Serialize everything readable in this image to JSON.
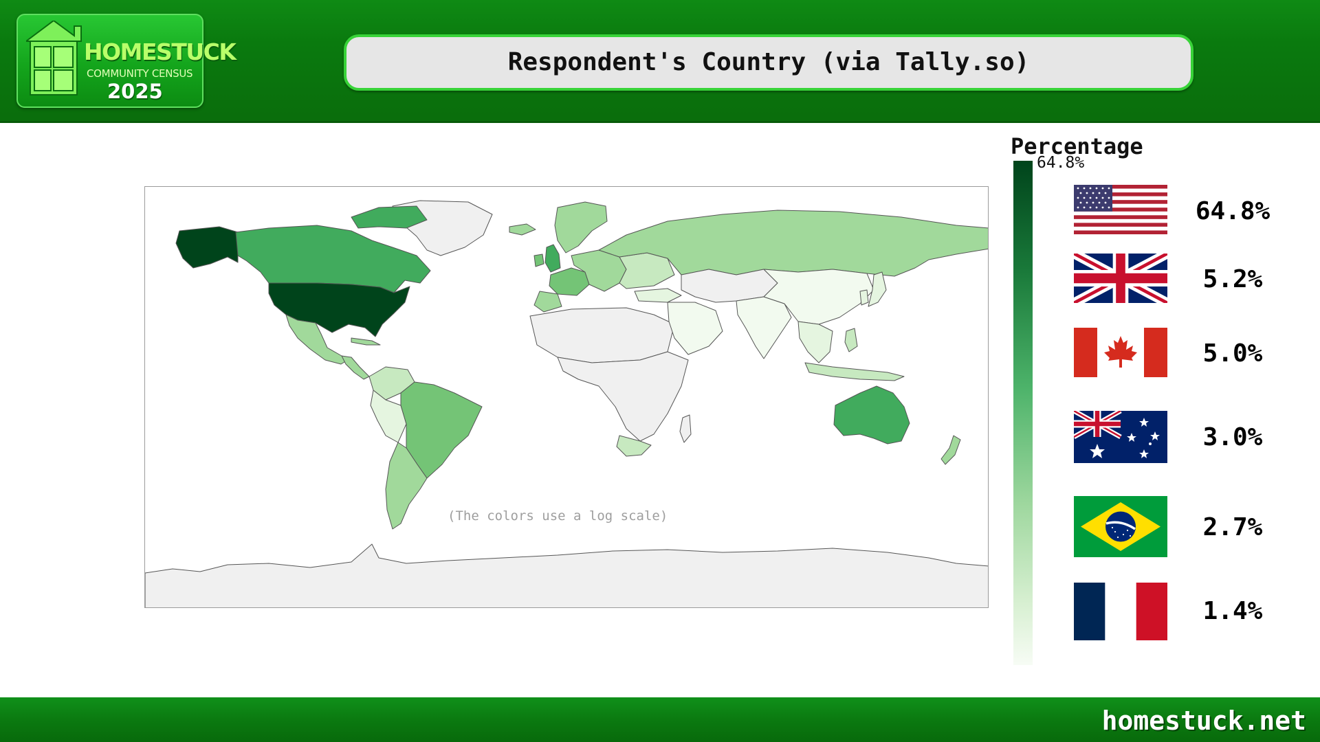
{
  "logo": {
    "title": "HOMESTUCK",
    "subtitle": "COMMUNITY CENSUS",
    "year": "2025"
  },
  "page_title": "Respondent's Country (via Tally.so)",
  "map": {
    "note": "(The colors use a log scale)",
    "scale": "log",
    "colors": {
      "highest": "#00441b",
      "high": "#41ab5d",
      "mid": "#74c476",
      "low": "#a1d99b",
      "lowest": "#f2faef",
      "no_data": "#f0f0f0"
    }
  },
  "legend": {
    "title": "Percentage",
    "max_label": "64.8%",
    "placement": "right"
  },
  "chart_data": {
    "type": "table",
    "title": "Respondent's Country (via Tally.so)",
    "categories": [
      "United States",
      "United Kingdom",
      "Canada",
      "Australia",
      "Brazil",
      "France"
    ],
    "values": [
      64.8,
      5.2,
      5.0,
      3.0,
      2.7,
      1.4
    ],
    "value_labels": [
      "64.8%",
      "5.2%",
      "5.0%",
      "3.0%",
      "2.7%",
      "1.4%"
    ],
    "flags": [
      "flag-us-icon",
      "flag-uk-icon",
      "flag-canada-icon",
      "flag-australia-icon",
      "flag-brazil-icon",
      "flag-france-icon"
    ]
  },
  "footer": {
    "site": "homestuck.net"
  }
}
